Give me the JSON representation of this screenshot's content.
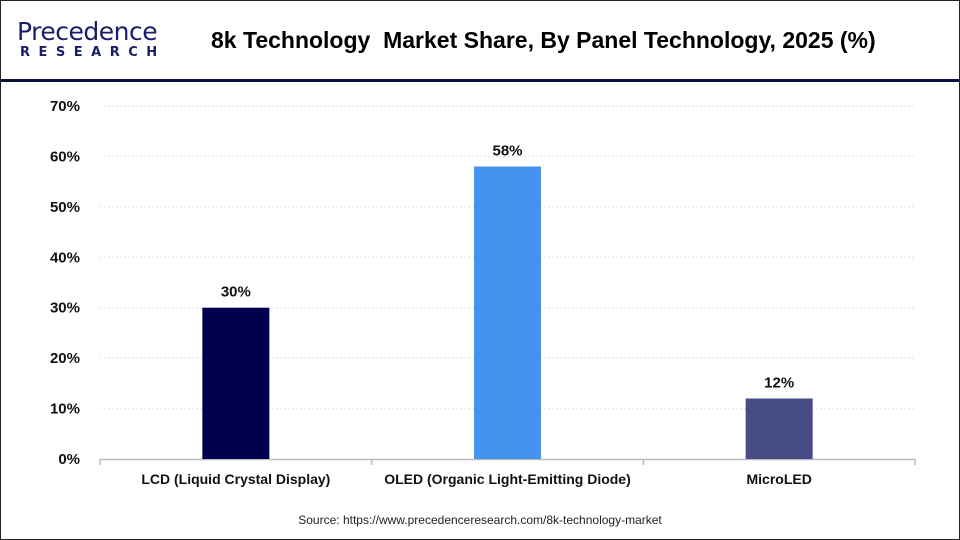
{
  "logo": {
    "line1": "Precedence",
    "line2": "RESEARCH"
  },
  "source": "Source: https://www.precedenceresearch.com/8k-technology-market",
  "colors": {
    "lcd": "#000050",
    "oled": "#4593EF",
    "microled": "#474B86",
    "header_rule": "#0C1040"
  },
  "chart_data": {
    "type": "bar",
    "title": "8k Technology  Market Share, By Panel Technology, 2025 (%)",
    "categories": [
      "LCD (Liquid Crystal Display)",
      "OLED (Organic Light-Emitting Diode)",
      "MicroLED"
    ],
    "values": [
      30,
      58,
      12
    ],
    "data_labels": [
      "30%",
      "58%",
      "12%"
    ],
    "ylim": [
      0,
      70
    ],
    "yticks": [
      "0%",
      "10%",
      "20%",
      "30%",
      "40%",
      "50%",
      "60%",
      "70%"
    ],
    "grid": true,
    "xlabel": "",
    "ylabel": ""
  }
}
